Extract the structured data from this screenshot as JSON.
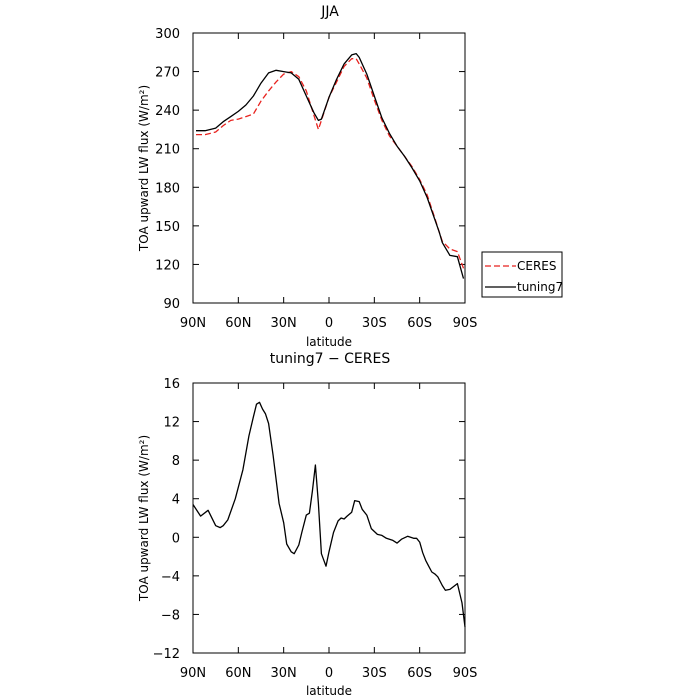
{
  "chart_data": [
    {
      "type": "line",
      "title": "JJA",
      "xlabel": "latitude",
      "ylabel": "TOA upward LW flux (W/m²)",
      "xlim": [
        90,
        -90
      ],
      "ylim": [
        90,
        300
      ],
      "x_ticks": [
        90,
        60,
        30,
        0,
        -30,
        -60,
        -90
      ],
      "x_tick_labels": [
        "90N",
        "60N",
        "30N",
        "0",
        "30S",
        "60S",
        "90S"
      ],
      "y_ticks": [
        90,
        120,
        150,
        180,
        210,
        240,
        270,
        300
      ],
      "y_tick_labels": [
        "90",
        "120",
        "150",
        "180",
        "210",
        "240",
        "270",
        "300"
      ],
      "legend_position": "right",
      "series": [
        {
          "name": "CERES",
          "color": "#e8221e",
          "dash": "dashed",
          "x": [
            88,
            82,
            75,
            70,
            65,
            60,
            55,
            50,
            45,
            40,
            35,
            30,
            25,
            20,
            15,
            10,
            7,
            5,
            0,
            -5,
            -10,
            -15,
            -18,
            -20,
            -25,
            -30,
            -35,
            -40,
            -45,
            -50,
            -55,
            -60,
            -65,
            -70,
            -73,
            -75,
            -80,
            -85,
            -89
          ],
          "y": [
            221,
            221,
            223,
            228,
            232,
            233,
            235,
            237,
            247,
            255,
            262,
            268,
            270,
            266,
            255,
            236,
            225,
            232,
            250,
            262,
            274,
            280,
            280,
            276,
            265,
            248,
            232,
            220,
            212,
            204,
            196,
            186,
            174,
            156,
            145,
            138,
            132,
            130,
            117
          ]
        },
        {
          "name": "tuning7",
          "color": "#000000",
          "dash": "solid",
          "x": [
            88,
            82,
            75,
            70,
            65,
            60,
            55,
            50,
            45,
            40,
            35,
            30,
            25,
            20,
            15,
            10,
            7,
            5,
            0,
            -5,
            -10,
            -15,
            -18,
            -20,
            -25,
            -30,
            -35,
            -40,
            -45,
            -50,
            -55,
            -60,
            -65,
            -70,
            -73,
            -75,
            -80,
            -85,
            -89
          ],
          "y": [
            224,
            224,
            226,
            231,
            235,
            239,
            244,
            251,
            261,
            269,
            271,
            270,
            269,
            264,
            251,
            238,
            232,
            233,
            250,
            264,
            276,
            283,
            284,
            281,
            268,
            251,
            234,
            222,
            212,
            204,
            195,
            185,
            172,
            155,
            145,
            137,
            127,
            126,
            109
          ]
        }
      ]
    },
    {
      "type": "line",
      "title": "tuning7 − CERES",
      "xlabel": "latitude",
      "ylabel": "TOA upward LW flux (W/m²)",
      "xlim": [
        90,
        -90
      ],
      "ylim": [
        -12,
        16
      ],
      "x_ticks": [
        90,
        60,
        30,
        0,
        -30,
        -60,
        -90
      ],
      "x_tick_labels": [
        "90N",
        "60N",
        "30N",
        "0",
        "30S",
        "60S",
        "90S"
      ],
      "y_ticks": [
        -12,
        -8,
        -4,
        0,
        4,
        8,
        12,
        16
      ],
      "y_tick_labels": [
        "−12",
        "−8",
        "−4",
        "0",
        "4",
        "8",
        "12",
        "16"
      ],
      "series": [
        {
          "name": "",
          "color": "#000000",
          "dash": "solid",
          "x": [
            90,
            85,
            80,
            75,
            72,
            70,
            67,
            62,
            57,
            53,
            50,
            48,
            46,
            44,
            42,
            40,
            37,
            33,
            30,
            28,
            25,
            23,
            20,
            18,
            15,
            13,
            11,
            9,
            7,
            5,
            2,
            0,
            -3,
            -6,
            -8,
            -10,
            -12,
            -15,
            -17,
            -20,
            -22,
            -25,
            -28,
            -32,
            -35,
            -38,
            -42,
            -45,
            -48,
            -52,
            -56,
            -58,
            -60,
            -62,
            -64,
            -66,
            -68,
            -70,
            -72,
            -75,
            -77,
            -80,
            -85,
            -88,
            -90
          ],
          "y": [
            3.4,
            2.2,
            2.8,
            1.2,
            1.0,
            1.2,
            1.8,
            4.0,
            7.0,
            10.5,
            12.5,
            13.8,
            14.0,
            13.3,
            12.8,
            11.8,
            8.5,
            3.5,
            1.5,
            -0.7,
            -1.5,
            -1.7,
            -0.8,
            0.5,
            2.3,
            2.5,
            4.8,
            7.5,
            3.5,
            -1.7,
            -3.0,
            -1.5,
            0.5,
            1.7,
            2.0,
            1.9,
            2.2,
            2.6,
            3.8,
            3.7,
            2.9,
            2.3,
            0.9,
            0.3,
            0.2,
            -0.1,
            -0.3,
            -0.6,
            -0.2,
            0.1,
            -0.1,
            -0.1,
            -0.5,
            -1.6,
            -2.4,
            -3.0,
            -3.6,
            -3.8,
            -4.1,
            -5.0,
            -5.5,
            -5.4,
            -4.8,
            -6.8,
            -9.3
          ]
        }
      ]
    }
  ]
}
